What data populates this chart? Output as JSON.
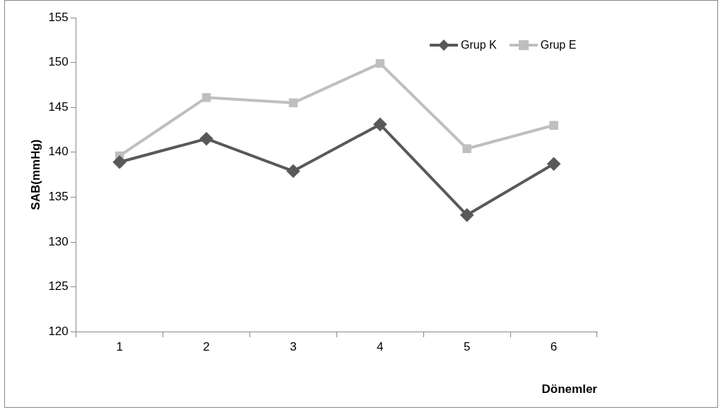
{
  "chart_data": {
    "type": "line",
    "xlabel": "Dönemler",
    "ylabel": "SAB(mmHg)",
    "categories": [
      "1",
      "2",
      "3",
      "4",
      "5",
      "6"
    ],
    "series": [
      {
        "name": "Grup K",
        "color": "#595959",
        "marker": "diamond",
        "values": [
          138.9,
          141.5,
          137.9,
          143.1,
          133.0,
          138.7
        ]
      },
      {
        "name": "Grup E",
        "color": "#bfbfbf",
        "marker": "square",
        "values": [
          139.6,
          146.1,
          145.5,
          149.9,
          140.4,
          143.0
        ]
      }
    ],
    "ylim": [
      120,
      155
    ],
    "yticks": [
      120,
      125,
      130,
      135,
      140,
      145,
      150,
      155
    ],
    "grid": false,
    "legend": "top right"
  }
}
